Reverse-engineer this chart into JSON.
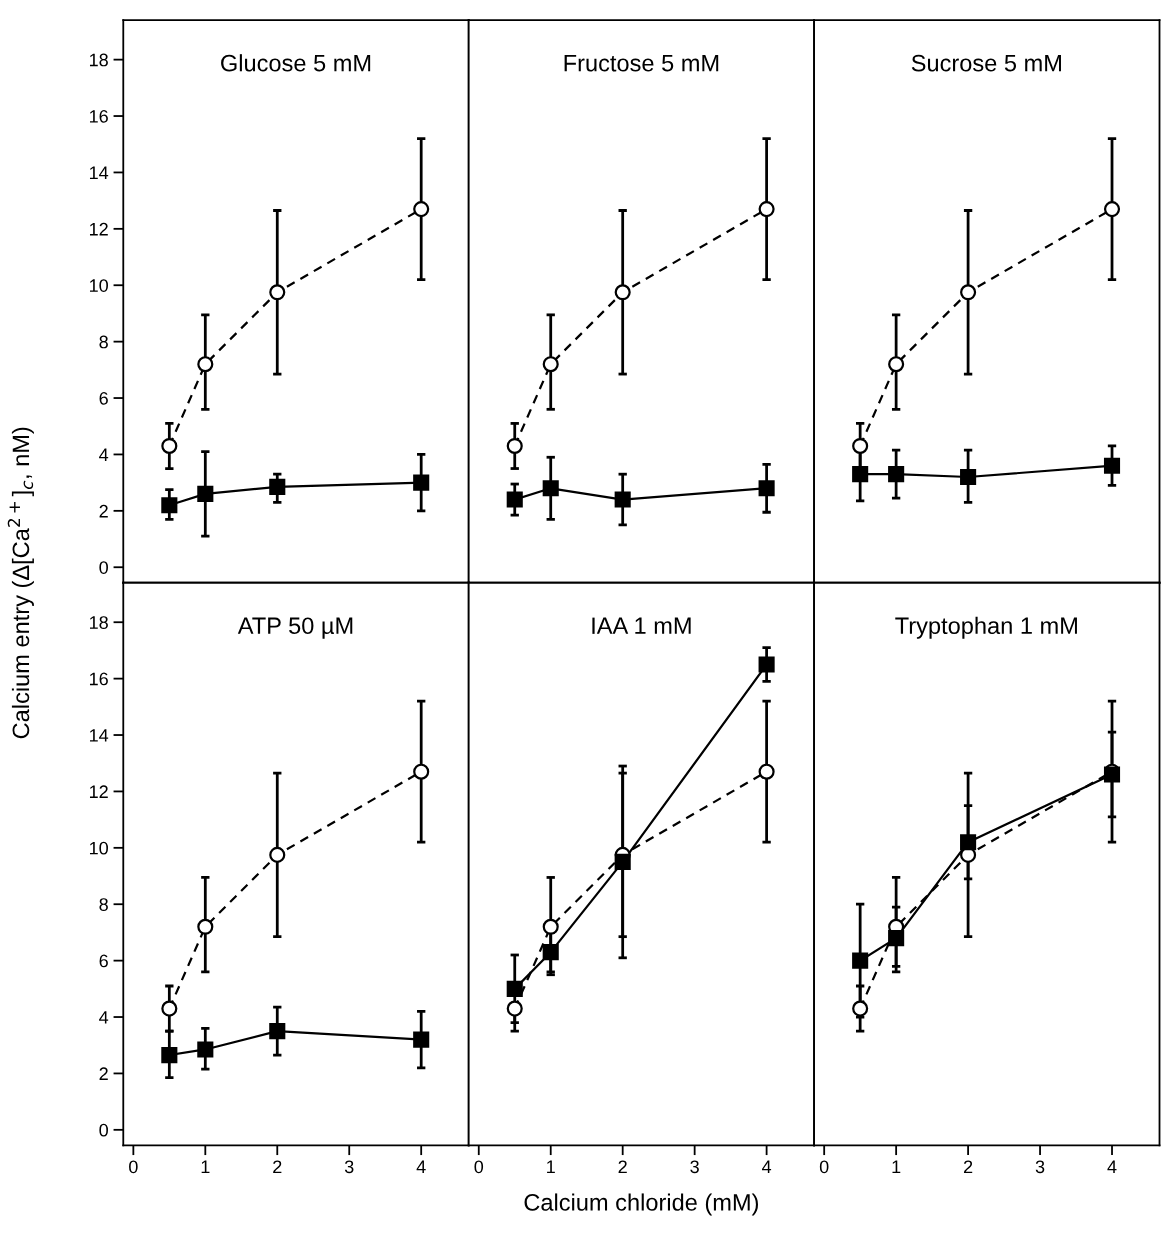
{
  "chart_data": [
    {
      "type": "line",
      "title": "Glucose 5 mM",
      "ylabel": "Calcium entry (Δ[Ca$^{2+}$]$_{c}$, nM)",
      "x": [
        0.5,
        1,
        2,
        4
      ],
      "xlim": [
        -0.14,
        4.66
      ],
      "ylim": [
        -0.55,
        19.4
      ],
      "yticks": [
        0,
        2,
        4,
        6,
        8,
        10,
        12,
        14,
        16,
        18
      ],
      "tick_labels": "y",
      "grid": false,
      "legend": false,
      "series": [
        {
          "color": "#000000",
          "marker": "circle",
          "line_style": "dashed",
          "values": [
            4.3,
            7.2,
            9.75,
            12.7
          ],
          "errors": [
            [
              3.5,
              5.1
            ],
            [
              5.6,
              8.95
            ],
            [
              6.85,
              12.65
            ],
            [
              10.2,
              15.2
            ]
          ]
        },
        {
          "color": "#000000",
          "marker": "square",
          "line_style": "solid",
          "values": [
            2.2,
            2.6,
            2.85,
            3.0
          ],
          "errors": [
            [
              1.7,
              2.75
            ],
            [
              1.1,
              4.1
            ],
            [
              2.3,
              3.3
            ],
            [
              2.0,
              4.0
            ]
          ]
        }
      ]
    },
    {
      "type": "line",
      "title": "Fructose 5 mM",
      "x": [
        0.5,
        1,
        2,
        4
      ],
      "xlim": [
        -0.14,
        4.66
      ],
      "ylim": [
        -0.55,
        19.4
      ],
      "tick_labels": false,
      "grid": false,
      "legend": false,
      "series": [
        {
          "color": "#000000",
          "marker": "circle",
          "line_style": "dashed",
          "values": [
            4.3,
            7.2,
            9.75,
            12.7
          ],
          "errors": [
            [
              3.5,
              5.1
            ],
            [
              5.6,
              8.95
            ],
            [
              6.85,
              12.65
            ],
            [
              10.2,
              15.2
            ]
          ]
        },
        {
          "color": "#000000",
          "marker": "square",
          "line_style": "solid",
          "values": [
            2.4,
            2.8,
            2.4,
            2.8
          ],
          "errors": [
            [
              1.85,
              2.95
            ],
            [
              1.7,
              3.9
            ],
            [
              1.5,
              3.3
            ],
            [
              1.95,
              3.65
            ]
          ]
        }
      ]
    },
    {
      "type": "line",
      "title": "Sucrose 5 mM",
      "x": [
        0.5,
        1,
        2,
        4
      ],
      "xlim": [
        -0.14,
        4.66
      ],
      "ylim": [
        -0.55,
        19.4
      ],
      "tick_labels": false,
      "grid": false,
      "legend": false,
      "series": [
        {
          "color": "#000000",
          "marker": "circle",
          "line_style": "dashed",
          "values": [
            4.3,
            7.2,
            9.75,
            12.7
          ],
          "errors": [
            [
              3.5,
              5.1
            ],
            [
              5.6,
              8.95
            ],
            [
              6.85,
              12.65
            ],
            [
              10.2,
              15.2
            ]
          ]
        },
        {
          "color": "#000000",
          "marker": "square",
          "line_style": "solid",
          "values": [
            3.3,
            3.3,
            3.2,
            3.6
          ],
          "errors": [
            [
              2.35,
              4.15
            ],
            [
              2.45,
              4.15
            ],
            [
              2.3,
              4.15
            ],
            [
              2.9,
              4.3
            ]
          ]
        }
      ]
    },
    {
      "type": "line",
      "title": "ATP 50 µM",
      "x": [
        0.5,
        1,
        2,
        4
      ],
      "xlim": [
        -0.14,
        4.66
      ],
      "ylim": [
        -0.55,
        19.4
      ],
      "xticks": [
        0,
        1,
        2,
        3,
        4
      ],
      "yticks": [
        0,
        2,
        4,
        6,
        8,
        10,
        12,
        14,
        16,
        18
      ],
      "grid": false,
      "legend": false,
      "series": [
        {
          "color": "#000000",
          "marker": "circle",
          "line_style": "dashed",
          "values": [
            4.3,
            7.2,
            9.75,
            12.7
          ],
          "errors": [
            [
              3.5,
              5.1
            ],
            [
              5.6,
              8.95
            ],
            [
              6.85,
              12.65
            ],
            [
              10.2,
              15.2
            ]
          ]
        },
        {
          "color": "#000000",
          "marker": "square",
          "line_style": "solid",
          "values": [
            2.65,
            2.85,
            3.5,
            3.2
          ],
          "errors": [
            [
              1.85,
              3.5
            ],
            [
              2.15,
              3.6
            ],
            [
              2.65,
              4.35
            ],
            [
              2.2,
              4.2
            ]
          ]
        }
      ]
    },
    {
      "type": "line",
      "title": "IAA 1 mM",
      "xlabel": "Calcium chloride (mM)",
      "x": [
        0.5,
        1,
        2,
        4
      ],
      "xlim": [
        -0.14,
        4.66
      ],
      "ylim": [
        -0.55,
        19.4
      ],
      "xticks": [
        0,
        1,
        2,
        3,
        4
      ],
      "tick_labels": "x",
      "grid": false,
      "legend": false,
      "series": [
        {
          "color": "#000000",
          "marker": "circle",
          "line_style": "dashed",
          "values": [
            4.3,
            7.2,
            9.75,
            12.7
          ],
          "errors": [
            [
              3.5,
              4.3
            ],
            [
              5.6,
              8.95
            ],
            [
              6.85,
              12.65
            ],
            [
              10.2,
              15.2
            ]
          ]
        },
        {
          "color": "#000000",
          "marker": "square",
          "line_style": "solid",
          "values": [
            5.0,
            6.3,
            9.5,
            16.5
          ],
          "errors": [
            [
              3.8,
              6.2
            ],
            [
              5.5,
              7.0
            ],
            [
              6.1,
              12.9
            ],
            [
              15.9,
              17.1
            ]
          ]
        }
      ]
    },
    {
      "type": "line",
      "title": "Tryptophan 1 mM",
      "x": [
        0.5,
        1,
        2,
        4
      ],
      "xlim": [
        -0.14,
        4.66
      ],
      "ylim": [
        -0.55,
        19.4
      ],
      "xticks": [
        0,
        1,
        2,
        3,
        4
      ],
      "tick_labels": "x",
      "grid": false,
      "legend": false,
      "series": [
        {
          "color": "#000000",
          "marker": "circle",
          "line_style": "dashed",
          "values": [
            4.3,
            7.2,
            9.75,
            12.7
          ],
          "errors": [
            [
              3.5,
              5.1
            ],
            [
              5.6,
              8.95
            ],
            [
              6.85,
              12.65
            ],
            [
              10.2,
              15.2
            ]
          ]
        },
        {
          "color": "#000000",
          "marker": "square",
          "line_style": "solid",
          "values": [
            6.0,
            6.8,
            10.2,
            12.6
          ],
          "errors": [
            [
              4.0,
              8.0
            ],
            [
              5.8,
              7.9
            ],
            [
              8.9,
              11.5
            ],
            [
              11.1,
              14.1
            ]
          ]
        }
      ]
    }
  ]
}
